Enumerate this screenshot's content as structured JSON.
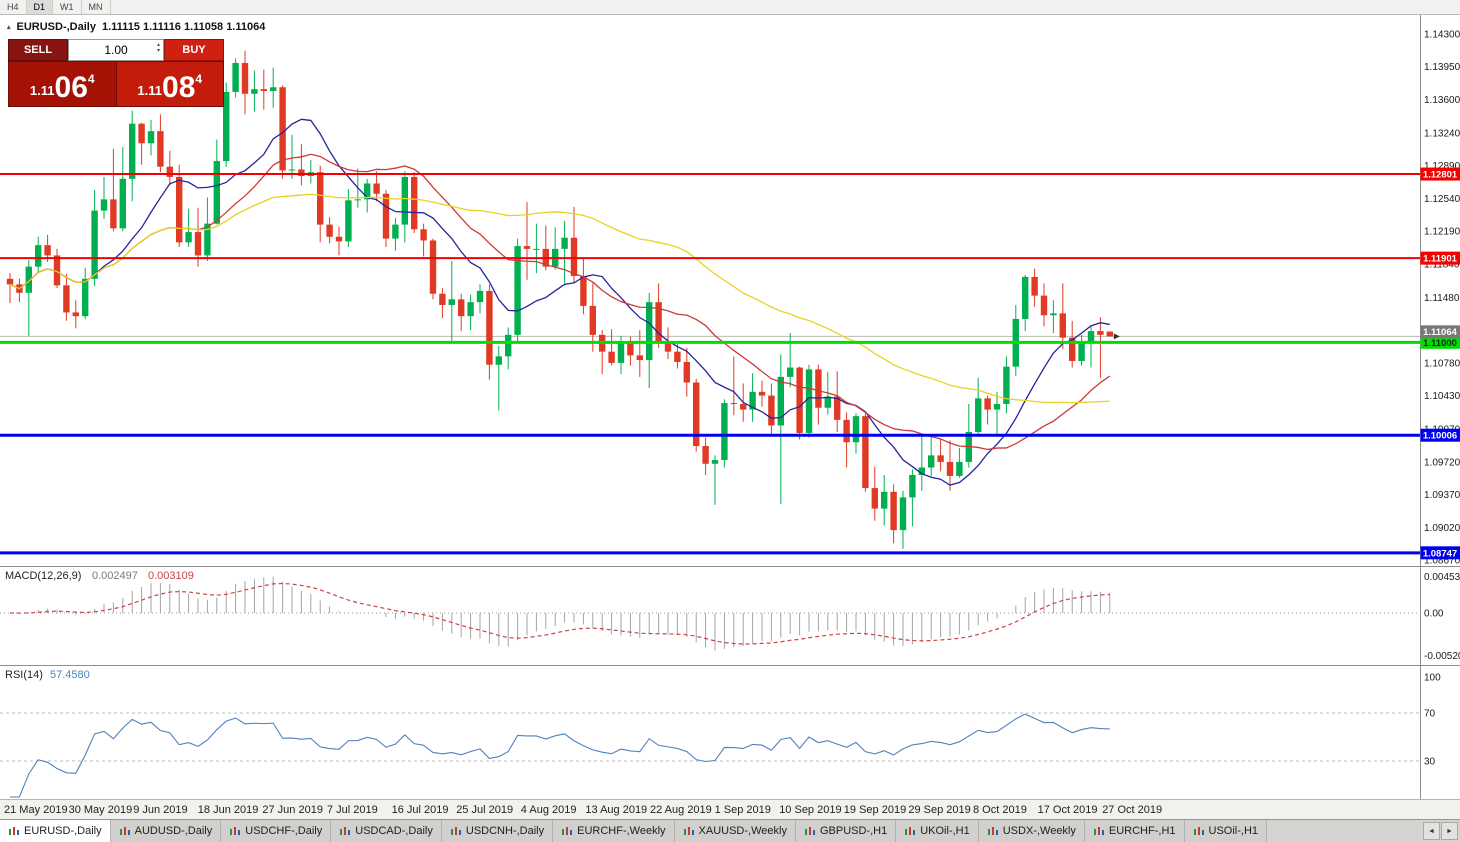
{
  "toolbar": {
    "timeframes": [
      {
        "label": "H4",
        "active": false
      },
      {
        "label": "D1",
        "active": true
      },
      {
        "label": "W1",
        "active": false
      },
      {
        "label": "MN",
        "active": false
      }
    ]
  },
  "chart_header": {
    "symbol": "EURUSD-,Daily",
    "ohlc": "1.11115 1.11116 1.11058 1.11064"
  },
  "trade_panel": {
    "sell_label": "SELL",
    "buy_label": "BUY",
    "volume": "1.00",
    "sell_price": {
      "prefix": "1.11",
      "big": "06",
      "sup": "4"
    },
    "buy_price": {
      "prefix": "1.11",
      "big": "08",
      "sup": "4"
    }
  },
  "icons": {
    "collapse": "▴",
    "spinner_up": "▴",
    "spinner_down": "▾",
    "scroll_left": "◄",
    "scroll_right": "►"
  },
  "colors": {
    "bull": "#00b050",
    "bear": "#e03a24"
  },
  "chart_data": {
    "type": "candlestick",
    "symbol": "EURUSD-",
    "timeframe": "Daily",
    "price_range": {
      "max": 1.143,
      "min": 1.0867
    },
    "price_axis_labels": [
      "1.14300",
      "1.13950",
      "1.13600",
      "1.13240",
      "1.12890",
      "1.12540",
      "1.12190",
      "1.11840",
      "1.11480",
      "1.11130",
      "1.10780",
      "1.10430",
      "1.10070",
      "1.09720",
      "1.09370",
      "1.09020",
      "1.08670"
    ],
    "hlines": [
      {
        "price": 1.12801,
        "label": "1.12801",
        "color": "#f40000",
        "width": 2,
        "text_color": "#ffffff"
      },
      {
        "price": 1.11901,
        "label": "1.11901",
        "color": "#f40000",
        "width": 2,
        "text_color": "#ffffff"
      },
      {
        "price": 1.11,
        "label": "1.11000",
        "color": "#00dd00",
        "width": 3,
        "text_color": "#003300"
      },
      {
        "price": 1.10006,
        "label": "1.10006",
        "color": "#0000f0",
        "width": 3,
        "text_color": "#ffffff"
      },
      {
        "price": 1.08747,
        "label": "1.08747",
        "color": "#0000f0",
        "width": 3,
        "text_color": "#ffffff"
      }
    ],
    "current_price": {
      "value": 1.11064,
      "label": "1.11064"
    },
    "x_labels": [
      "21 May 2019",
      "30 May 2019",
      "9 Jun 2019",
      "18 Jun 2019",
      "27 Jun 2019",
      "7 Jul 2019",
      "16 Jul 2019",
      "25 Jul 2019",
      "4 Aug 2019",
      "13 Aug 2019",
      "22 Aug 2019",
      "1 Sep 2019",
      "10 Sep 2019",
      "19 Sep 2019",
      "29 Sep 2019",
      "8 Oct 2019",
      "17 Oct 2019",
      "27 Oct 2019"
    ],
    "moving_averages": [
      {
        "period": 10,
        "color": "#24249c"
      },
      {
        "period": 21,
        "color": "#cc3a3a"
      },
      {
        "period": 50,
        "color": "#e8d222"
      }
    ],
    "macd": {
      "label": "MACD(12,26,9)",
      "value_main": "0.002497",
      "value_signal": "0.003109",
      "fast": 12,
      "slow": 26,
      "signal": 9,
      "axis_labels": [
        "0.004536",
        "0.00",
        "-0.005205"
      ],
      "hist_color": "#a3a3a3",
      "signal_color": "#cc4444"
    },
    "rsi": {
      "label": "RSI(14)",
      "value": "57.4580",
      "period": 14,
      "axis_labels": [
        "100",
        "70",
        "30"
      ],
      "levels": [
        70,
        30
      ],
      "color": "#4f81bd"
    },
    "candles": [
      [
        1.1168,
        1.1174,
        1.1142,
        1.1162
      ],
      [
        1.1162,
        1.1168,
        1.1143,
        1.1153
      ],
      [
        1.1153,
        1.1188,
        1.1107,
        1.1181
      ],
      [
        1.1181,
        1.1213,
        1.1174,
        1.1204
      ],
      [
        1.1204,
        1.1215,
        1.1186,
        1.1193
      ],
      [
        1.1193,
        1.12,
        1.1158,
        1.1161
      ],
      [
        1.1161,
        1.1173,
        1.1123,
        1.1132
      ],
      [
        1.1132,
        1.1145,
        1.1115,
        1.1128
      ],
      [
        1.1128,
        1.118,
        1.1125,
        1.1168
      ],
      [
        1.1168,
        1.1263,
        1.116,
        1.1241
      ],
      [
        1.1241,
        1.1277,
        1.1232,
        1.1253
      ],
      [
        1.1253,
        1.1307,
        1.1219,
        1.1222
      ],
      [
        1.1222,
        1.1309,
        1.1219,
        1.1275
      ],
      [
        1.1275,
        1.1348,
        1.1251,
        1.1334
      ],
      [
        1.1334,
        1.1335,
        1.129,
        1.1313
      ],
      [
        1.1313,
        1.1338,
        1.13,
        1.1326
      ],
      [
        1.1326,
        1.1344,
        1.1282,
        1.1288
      ],
      [
        1.1288,
        1.1305,
        1.1268,
        1.1277
      ],
      [
        1.1277,
        1.129,
        1.1202,
        1.1207
      ],
      [
        1.1207,
        1.1243,
        1.1202,
        1.1218
      ],
      [
        1.1218,
        1.1244,
        1.1181,
        1.1193
      ],
      [
        1.1193,
        1.1255,
        1.1187,
        1.1227
      ],
      [
        1.1227,
        1.1317,
        1.1226,
        1.1294
      ],
      [
        1.1294,
        1.1378,
        1.1288,
        1.1368
      ],
      [
        1.1368,
        1.1404,
        1.1362,
        1.1399
      ],
      [
        1.1399,
        1.1412,
        1.1344,
        1.1366
      ],
      [
        1.1366,
        1.1391,
        1.1347,
        1.1371
      ],
      [
        1.1371,
        1.1392,
        1.1349,
        1.1369
      ],
      [
        1.1369,
        1.1394,
        1.1351,
        1.1373
      ],
      [
        1.1373,
        1.1375,
        1.1275,
        1.1284
      ],
      [
        1.1284,
        1.1322,
        1.1275,
        1.1285
      ],
      [
        1.1285,
        1.1312,
        1.1268,
        1.1278
      ],
      [
        1.1278,
        1.1295,
        1.127,
        1.1282
      ],
      [
        1.1282,
        1.1289,
        1.1207,
        1.1226
      ],
      [
        1.1226,
        1.1234,
        1.1206,
        1.1213
      ],
      [
        1.1213,
        1.1224,
        1.1193,
        1.1208
      ],
      [
        1.1208,
        1.1264,
        1.1202,
        1.1252
      ],
      [
        1.1252,
        1.1286,
        1.1244,
        1.1253
      ],
      [
        1.1253,
        1.1275,
        1.1239,
        1.127
      ],
      [
        1.127,
        1.1283,
        1.1251,
        1.1259
      ],
      [
        1.1259,
        1.1263,
        1.1202,
        1.1211
      ],
      [
        1.1211,
        1.1233,
        1.1198,
        1.1226
      ],
      [
        1.1226,
        1.1283,
        1.1207,
        1.1277
      ],
      [
        1.1277,
        1.1282,
        1.1217,
        1.1221
      ],
      [
        1.1221,
        1.1227,
        1.1192,
        1.1209
      ],
      [
        1.1209,
        1.1211,
        1.1146,
        1.1152
      ],
      [
        1.1152,
        1.1158,
        1.1126,
        1.114
      ],
      [
        1.114,
        1.1187,
        1.1101,
        1.1146
      ],
      [
        1.1146,
        1.1152,
        1.1112,
        1.1128
      ],
      [
        1.1128,
        1.1151,
        1.1113,
        1.1143
      ],
      [
        1.1143,
        1.1162,
        1.1131,
        1.1155
      ],
      [
        1.1155,
        1.1162,
        1.106,
        1.1076
      ],
      [
        1.1076,
        1.1096,
        1.1027,
        1.1085
      ],
      [
        1.1085,
        1.1116,
        1.1071,
        1.1108
      ],
      [
        1.1108,
        1.1211,
        1.1101,
        1.1203
      ],
      [
        1.1203,
        1.125,
        1.1167,
        1.12
      ],
      [
        1.12,
        1.1227,
        1.1174,
        1.12
      ],
      [
        1.12,
        1.1225,
        1.1177,
        1.1181
      ],
      [
        1.1181,
        1.1223,
        1.1178,
        1.12
      ],
      [
        1.12,
        1.123,
        1.1163,
        1.1212
      ],
      [
        1.1212,
        1.1245,
        1.1163,
        1.1171
      ],
      [
        1.1171,
        1.1191,
        1.113,
        1.1139
      ],
      [
        1.1139,
        1.1163,
        1.109,
        1.1108
      ],
      [
        1.1108,
        1.1113,
        1.1066,
        1.109
      ],
      [
        1.109,
        1.1114,
        1.1075,
        1.1078
      ],
      [
        1.1078,
        1.1107,
        1.1066,
        1.1099
      ],
      [
        1.1099,
        1.1106,
        1.1075,
        1.1086
      ],
      [
        1.1086,
        1.1113,
        1.1063,
        1.1081
      ],
      [
        1.1081,
        1.1153,
        1.1051,
        1.1143
      ],
      [
        1.1143,
        1.1163,
        1.1094,
        1.1101
      ],
      [
        1.1101,
        1.1116,
        1.1082,
        1.109
      ],
      [
        1.109,
        1.1098,
        1.1072,
        1.1079
      ],
      [
        1.1079,
        1.1094,
        1.1042,
        1.1057
      ],
      [
        1.1057,
        1.1061,
        1.0983,
        1.0989
      ],
      [
        1.0989,
        1.0998,
        1.0958,
        1.097
      ],
      [
        1.097,
        1.0979,
        1.0926,
        1.0974
      ],
      [
        1.0974,
        1.1039,
        1.0966,
        1.1035
      ],
      [
        1.1035,
        1.1085,
        1.1022,
        1.1034
      ],
      [
        1.1034,
        1.1056,
        1.1015,
        1.1028
      ],
      [
        1.1028,
        1.1067,
        1.1015,
        1.1047
      ],
      [
        1.1047,
        1.1059,
        1.1031,
        1.1043
      ],
      [
        1.1043,
        1.1056,
        1.1,
        1.1011
      ],
      [
        1.1011,
        1.1087,
        1.0927,
        1.1063
      ],
      [
        1.1063,
        1.111,
        1.1052,
        1.1073
      ],
      [
        1.1073,
        1.1074,
        1.0996,
        1.1003
      ],
      [
        1.1003,
        1.1076,
        1.0998,
        1.1071
      ],
      [
        1.1071,
        1.1076,
        1.1012,
        1.103
      ],
      [
        1.103,
        1.1068,
        1.1023,
        1.1042
      ],
      [
        1.1042,
        1.1069,
        1.1004,
        1.1017
      ],
      [
        1.1017,
        1.1025,
        1.0966,
        1.0993
      ],
      [
        1.0993,
        1.1024,
        1.0981,
        1.1021
      ],
      [
        1.1021,
        1.1024,
        1.094,
        1.0944
      ],
      [
        1.0944,
        1.0967,
        1.0909,
        1.0922
      ],
      [
        1.0922,
        1.0958,
        1.0904,
        1.094
      ],
      [
        1.094,
        1.0948,
        1.0885,
        1.0899
      ],
      [
        1.0899,
        1.0941,
        1.0879,
        1.0934
      ],
      [
        1.0934,
        1.0964,
        1.0903,
        1.0958
      ],
      [
        1.0958,
        1.0999,
        1.0941,
        1.0966
      ],
      [
        1.0966,
        1.0999,
        1.0957,
        1.0979
      ],
      [
        1.0979,
        1.0996,
        1.0962,
        1.0972
      ],
      [
        1.0972,
        1.0995,
        1.0941,
        1.0957
      ],
      [
        1.0957,
        1.0987,
        1.0955,
        1.0972
      ],
      [
        1.0972,
        1.1034,
        1.0966,
        1.1004
      ],
      [
        1.1004,
        1.1062,
        1.1002,
        1.104
      ],
      [
        1.104,
        1.1043,
        1.1012,
        1.1028
      ],
      [
        1.1028,
        1.1047,
        1.1001,
        1.1034
      ],
      [
        1.1034,
        1.1085,
        1.1024,
        1.1074
      ],
      [
        1.1074,
        1.114,
        1.1064,
        1.1125
      ],
      [
        1.1125,
        1.1172,
        1.1112,
        1.117
      ],
      [
        1.117,
        1.1179,
        1.1138,
        1.115
      ],
      [
        1.115,
        1.1163,
        1.1117,
        1.1129
      ],
      [
        1.1129,
        1.1145,
        1.111,
        1.1131
      ],
      [
        1.1131,
        1.1163,
        1.1093,
        1.1105
      ],
      [
        1.1105,
        1.1123,
        1.1073,
        1.108
      ],
      [
        1.108,
        1.1108,
        1.1075,
        1.11
      ],
      [
        1.11,
        1.1118,
        1.1073,
        1.1112
      ],
      [
        1.1112,
        1.1127,
        1.1062,
        1.1108
      ],
      [
        1.11115,
        1.11116,
        1.11058,
        1.11064
      ]
    ]
  },
  "tabs": [
    {
      "label": "EURUSD-,Daily",
      "active": true
    },
    {
      "label": "AUDUSD-,Daily",
      "active": false
    },
    {
      "label": "USDCHF-,Daily",
      "active": false
    },
    {
      "label": "USDCAD-,Daily",
      "active": false
    },
    {
      "label": "USDCNH-,Daily",
      "active": false
    },
    {
      "label": "EURCHF-,Weekly",
      "active": false
    },
    {
      "label": "XAUUSD-,Weekly",
      "active": false
    },
    {
      "label": "GBPUSD-,H1",
      "active": false
    },
    {
      "label": "UKOil-,H1",
      "active": false
    },
    {
      "label": "USDX-,Weekly",
      "active": false
    },
    {
      "label": "EURCHF-,H1",
      "active": false
    },
    {
      "label": "USOil-,H1",
      "active": false
    }
  ]
}
